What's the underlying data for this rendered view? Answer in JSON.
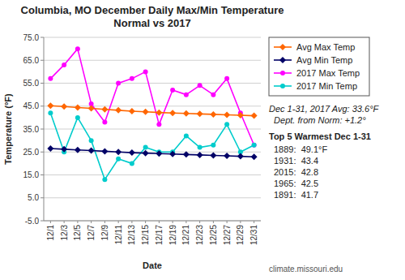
{
  "chart_data": {
    "type": "line",
    "title": "Columbia, MO December Daily Max/Min Temperature\nNormal vs 2017",
    "x_label": "Date",
    "y_label": "Temperature (°F)",
    "categories": [
      "12/1",
      "12/3",
      "12/5",
      "12/7",
      "12/9",
      "12/11",
      "12/13",
      "12/15",
      "12/17",
      "12/19",
      "12/21",
      "12/23",
      "12/25",
      "12/27",
      "12/29",
      "12/31"
    ],
    "series": [
      {
        "name": "Avg Max Temp",
        "color": "#FF6600",
        "marker": "diamond",
        "values": [
          45.2,
          44.8,
          44.4,
          44.0,
          43.6,
          43.2,
          42.8,
          42.5,
          42.2,
          42.0,
          41.8,
          41.6,
          41.4,
          41.2,
          41.0,
          40.8
        ]
      },
      {
        "name": "Avg Min Temp",
        "color": "#000066",
        "marker": "diamond",
        "values": [
          26.5,
          26.2,
          25.9,
          25.6,
          25.3,
          25.0,
          24.7,
          24.5,
          24.3,
          24.1,
          23.9,
          23.7,
          23.5,
          23.3,
          23.1,
          22.9
        ]
      },
      {
        "name": "2017 Max Temp",
        "color": "#FF00FF",
        "marker": "circle",
        "values": [
          57,
          63,
          70,
          46,
          38,
          55,
          57,
          60,
          37,
          52,
          50,
          54,
          50,
          57,
          42,
          28
        ]
      },
      {
        "name": "2017 Min Temp",
        "color": "#00CCCC",
        "marker": "circle",
        "values": [
          42,
          25,
          40,
          30,
          13,
          22,
          20,
          27,
          25,
          25,
          32,
          27,
          28,
          37,
          25,
          28
        ]
      }
    ],
    "ylim": [
      -5.0,
      75.0
    ],
    "yticks": [
      {
        "value": -5,
        "label": "-5.0"
      },
      {
        "value": 5,
        "label": "5.0"
      },
      {
        "value": 15,
        "label": "15.0"
      },
      {
        "value": 25,
        "label": "25.0"
      },
      {
        "value": 35,
        "label": "35.0"
      },
      {
        "value": 45,
        "label": "45.0"
      },
      {
        "value": 55,
        "label": "55.0"
      },
      {
        "value": 65,
        "label": "65.0"
      },
      {
        "value": 75,
        "label": "75.0"
      }
    ],
    "grid": true,
    "legend": "right",
    "annotations": [
      "Dec 1-31, 2017 Avg: 33.6°F\n  Dept. from Norm: +1.2°",
      "Top 5 Warmest Dec 1-31",
      "1889:  49.1°F",
      "1931:  43.4",
      "2015:  42.8",
      "1965:  42.5",
      "1891:  41.7",
      "climate.missouri.edu"
    ]
  }
}
